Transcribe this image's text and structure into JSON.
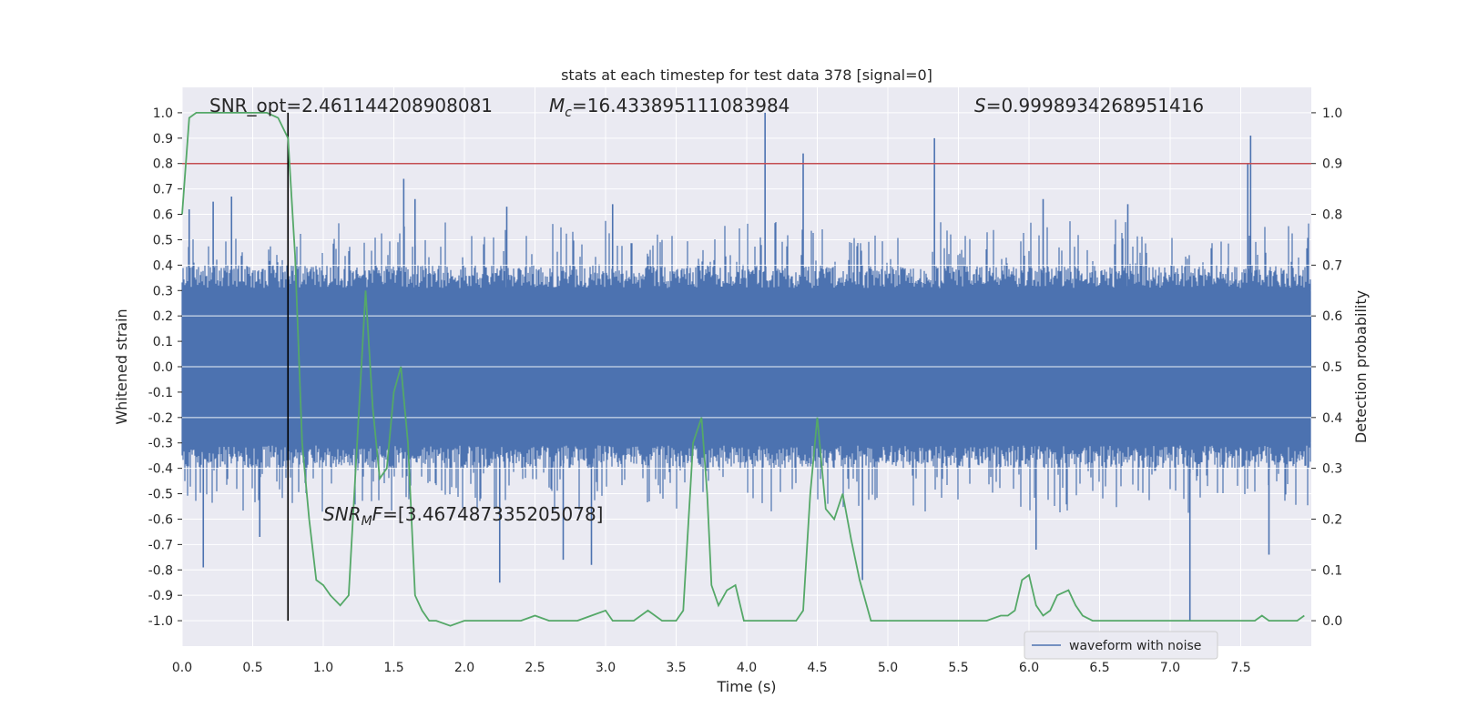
{
  "chart_data": {
    "type": "line",
    "title": "stats at each timestep for test data 378 [signal=0]",
    "xlabel": "Time (s)",
    "ylabel_left": "Whitened strain",
    "ylabel_right": "Detection probability",
    "xlim": [
      0.0,
      8.0
    ],
    "ylim_left": [
      -1.1,
      1.1
    ],
    "ylim_right": [
      -0.05,
      1.05
    ],
    "x_ticks": [
      "0.0",
      "0.5",
      "1.0",
      "1.5",
      "2.0",
      "2.5",
      "3.0",
      "3.5",
      "4.0",
      "4.5",
      "5.0",
      "5.5",
      "6.0",
      "6.5",
      "7.0",
      "7.5"
    ],
    "y_ticks_left": [
      "1.0",
      "0.9",
      "0.8",
      "0.7",
      "0.6",
      "0.5",
      "0.4",
      "0.3",
      "0.2",
      "0.1",
      "0.0",
      "-0.1",
      "-0.2",
      "-0.3",
      "-0.4",
      "-0.5",
      "-0.6",
      "-0.7",
      "-0.8",
      "-0.9",
      "-1.0"
    ],
    "y_ticks_right": [
      "1.0",
      "0.9",
      "0.8",
      "0.7",
      "0.6",
      "0.5",
      "0.4",
      "0.3",
      "0.2",
      "0.1",
      "0.0"
    ],
    "grid": true,
    "legend": {
      "position": "lower-right",
      "entries": [
        "waveform with noise"
      ]
    },
    "annotations": {
      "snr_opt": "SNR_opt=2.461144208908081",
      "mc_symbol": "M",
      "mc_sub": "c",
      "mc_value": "=16.433895111083984",
      "s_symbol": "S",
      "s_value": "=0.9998934268951416",
      "snr_mf_symbol": "SNR",
      "snr_mf_sub": "M",
      "snr_mf_tail": "F",
      "snr_mf_value": "=[3.467487335205078]"
    },
    "threshold_line": {
      "axis": "left",
      "y": 0.8,
      "color": "#c44e52"
    },
    "vertical_line": {
      "x": 0.75,
      "y_from": -1.0,
      "y_to": 1.0,
      "color": "#000000"
    },
    "waveform": {
      "name": "waveform with noise",
      "color": "#4c72b0",
      "duration_s": 8.0,
      "band_low": -0.2,
      "band_high": 0.2,
      "typical_high": 0.4,
      "typical_low": -0.4,
      "spikes_up": [
        {
          "x": 0.05,
          "y": 0.62
        },
        {
          "x": 0.22,
          "y": 0.65
        },
        {
          "x": 0.35,
          "y": 0.67
        },
        {
          "x": 1.57,
          "y": 0.74
        },
        {
          "x": 4.13,
          "y": 1.0
        },
        {
          "x": 4.4,
          "y": 0.84
        },
        {
          "x": 5.33,
          "y": 0.9
        },
        {
          "x": 7.57,
          "y": 0.91
        },
        {
          "x": 7.55,
          "y": 0.8
        },
        {
          "x": 1.65,
          "y": 0.66
        },
        {
          "x": 2.3,
          "y": 0.63
        },
        {
          "x": 3.05,
          "y": 0.64
        },
        {
          "x": 6.1,
          "y": 0.66
        },
        {
          "x": 6.7,
          "y": 0.64
        }
      ],
      "spikes_down": [
        {
          "x": 0.15,
          "y": -0.79
        },
        {
          "x": 2.25,
          "y": -0.85
        },
        {
          "x": 2.7,
          "y": -0.76
        },
        {
          "x": 2.9,
          "y": -0.78
        },
        {
          "x": 4.82,
          "y": -0.84
        },
        {
          "x": 7.14,
          "y": -1.0
        },
        {
          "x": 7.7,
          "y": -0.74
        },
        {
          "x": 6.05,
          "y": -0.72
        },
        {
          "x": 0.55,
          "y": -0.67
        }
      ]
    },
    "detection_probability": {
      "color": "#55a868",
      "x": [
        0.0,
        0.05,
        0.1,
        0.2,
        0.3,
        0.4,
        0.5,
        0.6,
        0.68,
        0.75,
        0.8,
        0.85,
        0.9,
        0.95,
        1.0,
        1.05,
        1.12,
        1.18,
        1.22,
        1.26,
        1.3,
        1.35,
        1.4,
        1.45,
        1.5,
        1.55,
        1.6,
        1.65,
        1.7,
        1.75,
        1.8,
        1.9,
        2.0,
        2.2,
        2.4,
        2.5,
        2.6,
        2.7,
        2.8,
        2.9,
        3.0,
        3.05,
        3.1,
        3.2,
        3.3,
        3.4,
        3.5,
        3.55,
        3.62,
        3.68,
        3.72,
        3.75,
        3.8,
        3.86,
        3.92,
        3.98,
        4.05,
        4.2,
        4.35,
        4.4,
        4.45,
        4.5,
        4.56,
        4.62,
        4.68,
        4.74,
        4.8,
        4.88,
        5.0,
        5.2,
        5.5,
        5.7,
        5.8,
        5.85,
        5.9,
        5.95,
        6.0,
        6.05,
        6.1,
        6.15,
        6.2,
        6.28,
        6.33,
        6.38,
        6.45,
        6.5,
        6.6,
        6.8,
        7.0,
        7.2,
        7.4,
        7.6,
        7.65,
        7.7,
        7.8,
        7.9,
        7.95
      ],
      "y": [
        0.8,
        0.99,
        1.0,
        1.0,
        1.0,
        1.0,
        1.0,
        1.0,
        0.99,
        0.95,
        0.72,
        0.35,
        0.2,
        0.08,
        0.07,
        0.05,
        0.03,
        0.05,
        0.25,
        0.45,
        0.65,
        0.42,
        0.28,
        0.3,
        0.45,
        0.5,
        0.35,
        0.05,
        0.02,
        0.0,
        0.0,
        -0.01,
        0.0,
        0.0,
        0.0,
        0.01,
        0.0,
        0.0,
        0.0,
        0.01,
        0.02,
        0.0,
        0.0,
        0.0,
        0.02,
        0.0,
        0.0,
        0.02,
        0.35,
        0.4,
        0.25,
        0.07,
        0.03,
        0.06,
        0.07,
        0.0,
        0.0,
        0.0,
        0.0,
        0.02,
        0.25,
        0.4,
        0.22,
        0.2,
        0.25,
        0.16,
        0.08,
        0.0,
        0.0,
        0.0,
        0.0,
        0.0,
        0.01,
        0.01,
        0.02,
        0.08,
        0.09,
        0.03,
        0.01,
        0.02,
        0.05,
        0.06,
        0.03,
        0.01,
        0.0,
        0.0,
        0.0,
        0.0,
        0.0,
        0.0,
        0.0,
        0.0,
        0.01,
        0.0,
        0.0,
        0.0,
        0.01
      ]
    }
  }
}
